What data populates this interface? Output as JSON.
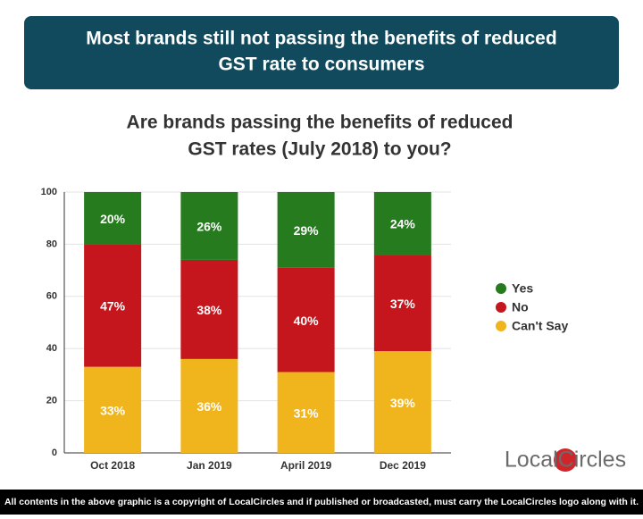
{
  "banner": {
    "lines": [
      "Most brands still not passing the benefits of reduced",
      "GST rate to consumers"
    ]
  },
  "chart_data": {
    "type": "stacked_bar",
    "title_lines": [
      "Are brands passing the benefits of reduced",
      "GST rates (July 2018) to you?"
    ],
    "categories": [
      "Oct 2018",
      "Jan 2019",
      "April 2019",
      "Dec 2019"
    ],
    "series": [
      {
        "name": "Can't Say",
        "color": "#f0b51d",
        "values": [
          33,
          36,
          31,
          39
        ],
        "value_labels": [
          "33%",
          "36%",
          "31%",
          "39%"
        ]
      },
      {
        "name": "No",
        "color": "#c4161c",
        "values": [
          47,
          38,
          40,
          37
        ],
        "value_labels": [
          "47%",
          "38%",
          "40%",
          "37%"
        ]
      },
      {
        "name": "Yes",
        "color": "#267b1f",
        "values": [
          20,
          26,
          29,
          24
        ],
        "value_labels": [
          "20%",
          "26%",
          "29%",
          "24%"
        ]
      }
    ],
    "ylim": [
      0,
      100
    ],
    "yticks": [
      0,
      20,
      40,
      60,
      80,
      100
    ],
    "grid": true,
    "legend": "right"
  },
  "logo": "LocalCircles",
  "footer": "All contents in the above graphic is a copyright of LocalCircles and if published or broadcasted, must carry the LocalCircles logo along with it."
}
